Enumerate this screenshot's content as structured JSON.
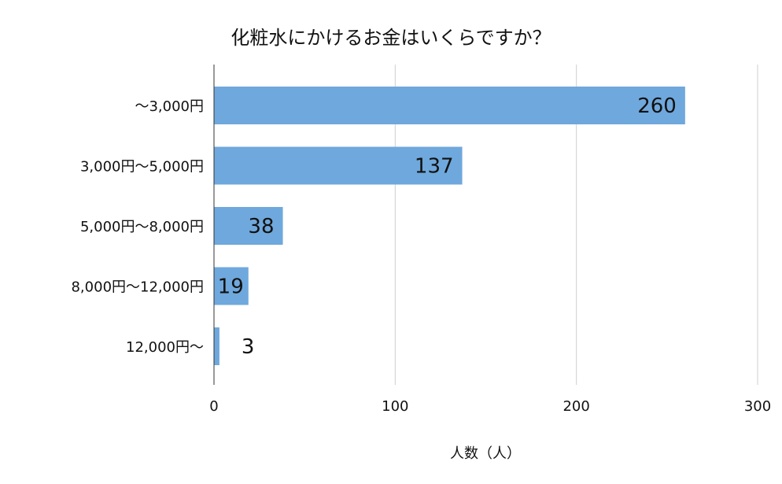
{
  "chart_data": {
    "type": "bar",
    "orientation": "horizontal",
    "title": "化粧水にかけるお金はいくらですか？",
    "xlabel": "人数（人）",
    "ylabel": "",
    "categories": [
      "～3,000円",
      "3,000円～5,000円",
      "5,000円～8,000円",
      "8,000円～12,000円",
      "12,000円～"
    ],
    "values": [
      260,
      137,
      38,
      19,
      3
    ],
    "xlim": [
      0,
      300
    ],
    "ticks": [
      0,
      100,
      200,
      300
    ],
    "tick_labels": [
      "0",
      "100",
      "200",
      "300"
    ],
    "grid": true,
    "legend": "none",
    "bar_color": "#6fa8dc"
  }
}
